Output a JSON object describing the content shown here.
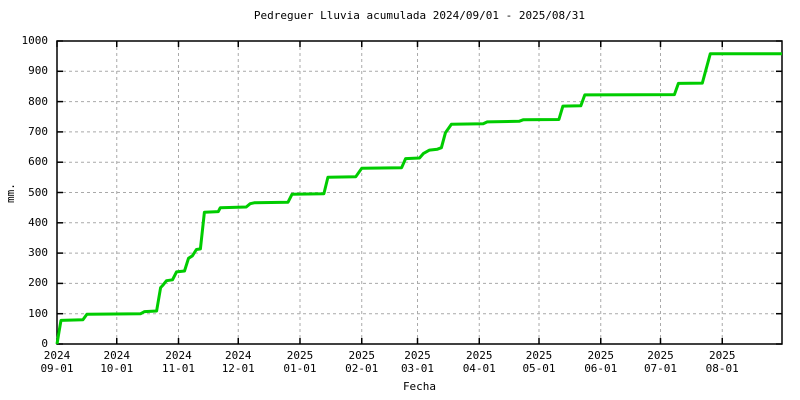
{
  "chart_data": {
    "type": "line",
    "title": "Pedreguer Lluvia acumulada 2024/09/01 - 2025/08/31",
    "xlabel": "Fecha",
    "ylabel": "mm.",
    "x_range": [
      "2024-09-01",
      "2025-08-31"
    ],
    "ylim": [
      0,
      1000
    ],
    "grid": true,
    "legend": "none",
    "line_style": "step-cumulative",
    "y_ticks": [
      0,
      100,
      200,
      300,
      400,
      500,
      600,
      700,
      800,
      900,
      1000
    ],
    "x_ticks": [
      {
        "year": "2024",
        "md": "09-01",
        "date": "2024-09-01"
      },
      {
        "year": "2024",
        "md": "10-01",
        "date": "2024-10-01"
      },
      {
        "year": "2024",
        "md": "11-01",
        "date": "2024-11-01"
      },
      {
        "year": "2024",
        "md": "12-01",
        "date": "2024-12-01"
      },
      {
        "year": "2025",
        "md": "01-01",
        "date": "2025-01-01"
      },
      {
        "year": "2025",
        "md": "02-01",
        "date": "2025-02-01"
      },
      {
        "year": "2025",
        "md": "03-01",
        "date": "2025-03-01"
      },
      {
        "year": "2025",
        "md": "04-01",
        "date": "2025-04-01"
      },
      {
        "year": "2025",
        "md": "05-01",
        "date": "2025-05-01"
      },
      {
        "year": "2025",
        "md": "06-01",
        "date": "2025-06-01"
      },
      {
        "year": "2025",
        "md": "07-01",
        "date": "2025-07-01"
      },
      {
        "year": "2025",
        "md": "08-01",
        "date": "2025-08-01"
      }
    ],
    "series": [
      {
        "name": "Lluvia acumulada",
        "points": [
          [
            "2024-09-01",
            0
          ],
          [
            "2024-09-02",
            40
          ],
          [
            "2024-09-03",
            78
          ],
          [
            "2024-09-14",
            80
          ],
          [
            "2024-09-16",
            98
          ],
          [
            "2024-10-13",
            100
          ],
          [
            "2024-10-15",
            107
          ],
          [
            "2024-10-21",
            109
          ],
          [
            "2024-10-23",
            186
          ],
          [
            "2024-10-24",
            193
          ],
          [
            "2024-10-26",
            209
          ],
          [
            "2024-10-29",
            212
          ],
          [
            "2024-10-31",
            238
          ],
          [
            "2024-11-04",
            241
          ],
          [
            "2024-11-06",
            283
          ],
          [
            "2024-11-08",
            291
          ],
          [
            "2024-11-10",
            312
          ],
          [
            "2024-11-12",
            314
          ],
          [
            "2024-11-14",
            435
          ],
          [
            "2024-11-21",
            437
          ],
          [
            "2024-11-22",
            450
          ],
          [
            "2024-12-05",
            452
          ],
          [
            "2024-12-07",
            463
          ],
          [
            "2024-12-09",
            466
          ],
          [
            "2024-12-26",
            468
          ],
          [
            "2024-12-28",
            494
          ],
          [
            "2025-01-13",
            496
          ],
          [
            "2025-01-15",
            550
          ],
          [
            "2025-01-29",
            552
          ],
          [
            "2025-02-01",
            580
          ],
          [
            "2025-02-21",
            582
          ],
          [
            "2025-02-23",
            612
          ],
          [
            "2025-03-02",
            614
          ],
          [
            "2025-03-04",
            629
          ],
          [
            "2025-03-07",
            640
          ],
          [
            "2025-03-11",
            643
          ],
          [
            "2025-03-13",
            648
          ],
          [
            "2025-03-15",
            697
          ],
          [
            "2025-03-18",
            725
          ],
          [
            "2025-04-03",
            727
          ],
          [
            "2025-04-05",
            733
          ],
          [
            "2025-04-21",
            735
          ],
          [
            "2025-04-23",
            740
          ],
          [
            "2025-05-11",
            741
          ],
          [
            "2025-05-13",
            785
          ],
          [
            "2025-05-22",
            786
          ],
          [
            "2025-05-24",
            822
          ],
          [
            "2025-07-08",
            823
          ],
          [
            "2025-07-10",
            860
          ],
          [
            "2025-07-22",
            861
          ],
          [
            "2025-07-26",
            958
          ],
          [
            "2025-08-31",
            958
          ]
        ]
      }
    ],
    "colors": {
      "line": "#00cc00",
      "grid": "#a9a9a9",
      "border": "#000000",
      "text": "#000000",
      "background": "#ffffff"
    }
  }
}
